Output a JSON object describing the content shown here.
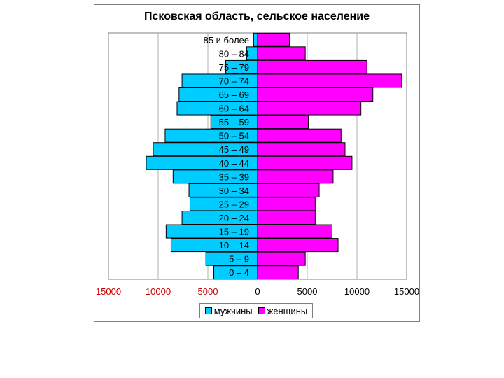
{
  "chart_data": {
    "type": "bar",
    "orientation": "horizontal",
    "title": "Псковская область, сельское население",
    "categories": [
      "0 – 4",
      "5 – 9",
      "10 – 14",
      "15 – 19",
      "20 – 24",
      "25 – 29",
      "30 – 34",
      "35 – 39",
      "40 – 44",
      "45 – 49",
      "50 – 54",
      "55 – 59",
      "60 – 64",
      "65 – 69",
      "70 – 74",
      "75 – 79",
      "80 – 84",
      "85 и более"
    ],
    "series": [
      {
        "name": "мужчины",
        "color": "#00ccff",
        "side": "left",
        "values": [
          4400,
          5200,
          8700,
          9200,
          7600,
          6800,
          6900,
          8500,
          11200,
          10500,
          9300,
          4700,
          8100,
          7900,
          7600,
          3200,
          1100,
          400
        ]
      },
      {
        "name": "женщины",
        "color": "#ff00ff",
        "side": "right",
        "values": [
          4100,
          4800,
          8100,
          7500,
          5800,
          5800,
          6200,
          7600,
          9500,
          8800,
          8400,
          5100,
          10400,
          11600,
          14500,
          11000,
          4800,
          3200
        ]
      }
    ],
    "xticks": [
      "15000",
      "10000",
      "5000",
      "0",
      "5000",
      "10000",
      "15000"
    ],
    "xlim": [
      -15000,
      15000
    ],
    "grid": "vertical",
    "legend": "bottom",
    "left_tick_color": "#cc0000",
    "right_tick_color": "#000000"
  }
}
